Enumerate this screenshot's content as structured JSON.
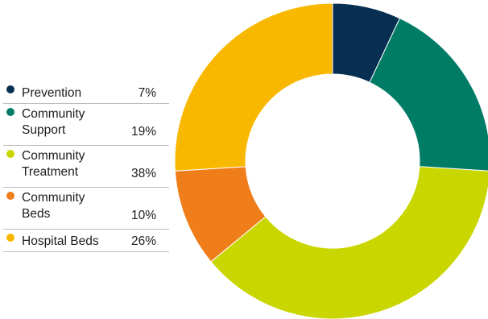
{
  "chart_data": {
    "type": "pie",
    "style": "donut",
    "start_angle_deg": 0,
    "direction": "clockwise",
    "legend_position": "left",
    "slices": [
      {
        "label": "Prevention",
        "value": 7,
        "value_label": "7%",
        "color": "#062f52"
      },
      {
        "label": "Community\nSupport",
        "value": 19,
        "value_label": "19%",
        "color": "#007c66"
      },
      {
        "label": "Community\nTreatment",
        "value": 38,
        "value_label": "38%",
        "color": "#c9d600"
      },
      {
        "label": "Community\nBeds",
        "value": 10,
        "value_label": "10%",
        "color": "#ef7d1a"
      },
      {
        "label": "Hospital Beds",
        "value": 26,
        "value_label": "26%",
        "color": "#f9b800"
      }
    ]
  }
}
